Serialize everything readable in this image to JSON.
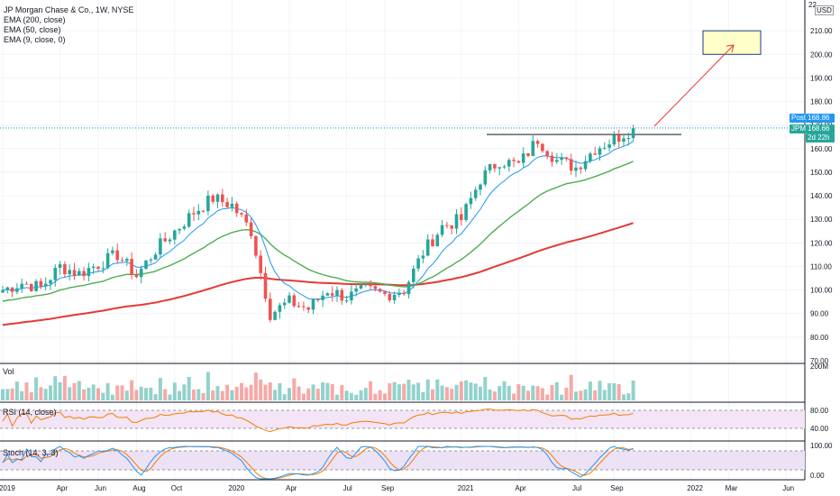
{
  "legend": {
    "title": "JP Morgan Chase & Co., 1W, NYSE",
    "ema200": "EMA (200, close)",
    "ema50": "EMA (50, close)",
    "ema9": "EMA (9, close, 0)"
  },
  "axis": {
    "currency": "USD",
    "top_number": "22",
    "price_ticks": [
      "210.00",
      "200.00",
      "190.00",
      "180.00",
      "170.00",
      "160.00",
      "150.00",
      "140.00",
      "130.00",
      "120.00",
      "110.00",
      "100.00",
      "90.00",
      "80.00",
      "70.00"
    ],
    "vol_tick": "200M",
    "rsi_ticks": [
      "80.00",
      "40.00"
    ],
    "stoch_ticks": [
      "100.00",
      "0.00"
    ],
    "time_labels": [
      "2019",
      "Apr",
      "Jun",
      "Aug",
      "Oct",
      "2020",
      "Apr",
      "Jul",
      "Sep",
      "2021",
      "Apr",
      "Jul",
      "Sep",
      "2022",
      "Mar",
      "Jun"
    ]
  },
  "badges": {
    "post_label": "Post",
    "post_price": "168.86",
    "sym_label": "JPM",
    "sym_price": "168.66",
    "countdown": "2d 22h"
  },
  "panes": {
    "vol": "Vol",
    "rsi": "RSI (14, close)",
    "stoch": "Stoch (14, 3, 3)"
  },
  "colors": {
    "up": "#26a69a",
    "down": "#ef5350",
    "ema200": "#e53935",
    "ema50": "#4caf50",
    "ema9": "#2196f3",
    "rsi_line": "#f57c00",
    "rsi_band": "#f3e5f5",
    "stoch_k": "#2196f3",
    "stoch_d": "#f57c00",
    "target_fill": "#ffffc8",
    "target_border": "#1e3a8a",
    "arrow": "#e53935",
    "resistance": "#131722"
  },
  "chart_data": {
    "type": "candlestick",
    "title": "JP Morgan Chase & Co., 1W, NYSE",
    "x_range": [
      "2019-01",
      "2022-06"
    ],
    "ylim": [
      70,
      220
    ],
    "series_close": [
      [
        "2019-01",
        100
      ],
      [
        "2019-02",
        103
      ],
      [
        "2019-03",
        101
      ],
      [
        "2019-04",
        110
      ],
      [
        "2019-05",
        107
      ],
      [
        "2019-06",
        111
      ],
      [
        "2019-07",
        115
      ],
      [
        "2019-08",
        106
      ],
      [
        "2019-09",
        117
      ],
      [
        "2019-10",
        125
      ],
      [
        "2019-11",
        133
      ],
      [
        "2019-12",
        139
      ],
      [
        "2020-01",
        136
      ],
      [
        "2020-02",
        125
      ],
      [
        "2020-03",
        90
      ],
      [
        "2020-04",
        95
      ],
      [
        "2020-05",
        92
      ],
      [
        "2020-06",
        100
      ],
      [
        "2020-07",
        97
      ],
      [
        "2020-08",
        100
      ],
      [
        "2020-09",
        98
      ],
      [
        "2020-10",
        100
      ],
      [
        "2020-11",
        116
      ],
      [
        "2020-12",
        127
      ],
      [
        "2021-01",
        130
      ],
      [
        "2021-02",
        147
      ],
      [
        "2021-03",
        155
      ],
      [
        "2021-04",
        153
      ],
      [
        "2021-05",
        164
      ],
      [
        "2021-06",
        155
      ],
      [
        "2021-07",
        152
      ],
      [
        "2021-08",
        160
      ],
      [
        "2021-09",
        164
      ],
      [
        "2021-10",
        168.66
      ]
    ],
    "resistance_level": 166,
    "target_zone": [
      200,
      210
    ],
    "last_price": 168.66,
    "post_market_price": 168.86
  }
}
